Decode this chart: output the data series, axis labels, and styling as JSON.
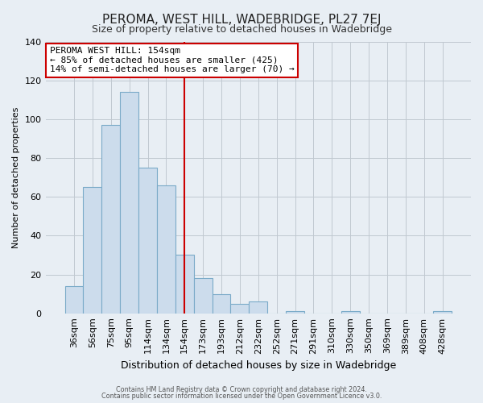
{
  "title": "PEROMA, WEST HILL, WADEBRIDGE, PL27 7EJ",
  "subtitle": "Size of property relative to detached houses in Wadebridge",
  "xlabel": "Distribution of detached houses by size in Wadebridge",
  "ylabel": "Number of detached properties",
  "bar_labels": [
    "36sqm",
    "56sqm",
    "75sqm",
    "95sqm",
    "114sqm",
    "134sqm",
    "154sqm",
    "173sqm",
    "193sqm",
    "212sqm",
    "232sqm",
    "252sqm",
    "271sqm",
    "291sqm",
    "310sqm",
    "330sqm",
    "350sqm",
    "369sqm",
    "389sqm",
    "408sqm",
    "428sqm"
  ],
  "bar_values": [
    14,
    65,
    97,
    114,
    75,
    66,
    30,
    18,
    10,
    5,
    6,
    0,
    1,
    0,
    0,
    1,
    0,
    0,
    0,
    0,
    1
  ],
  "bar_color": "#ccdcec",
  "bar_edge_color": "#7aaac8",
  "vline_x": 6,
  "vline_color": "#cc0000",
  "ylim": [
    0,
    140
  ],
  "yticks": [
    0,
    20,
    40,
    60,
    80,
    100,
    120,
    140
  ],
  "annotation_title": "PEROMA WEST HILL: 154sqm",
  "annotation_line1": "← 85% of detached houses are smaller (425)",
  "annotation_line2": "14% of semi-detached houses are larger (70) →",
  "annotation_box_color": "#ffffff",
  "annotation_box_edge_color": "#cc0000",
  "footer_line1": "Contains HM Land Registry data © Crown copyright and database right 2024.",
  "footer_line2": "Contains public sector information licensed under the Open Government Licence v3.0.",
  "background_color": "#e8eef4",
  "grid_color": "#c0c8d0",
  "title_fontsize": 11,
  "subtitle_fontsize": 9,
  "xlabel_fontsize": 9,
  "ylabel_fontsize": 8
}
